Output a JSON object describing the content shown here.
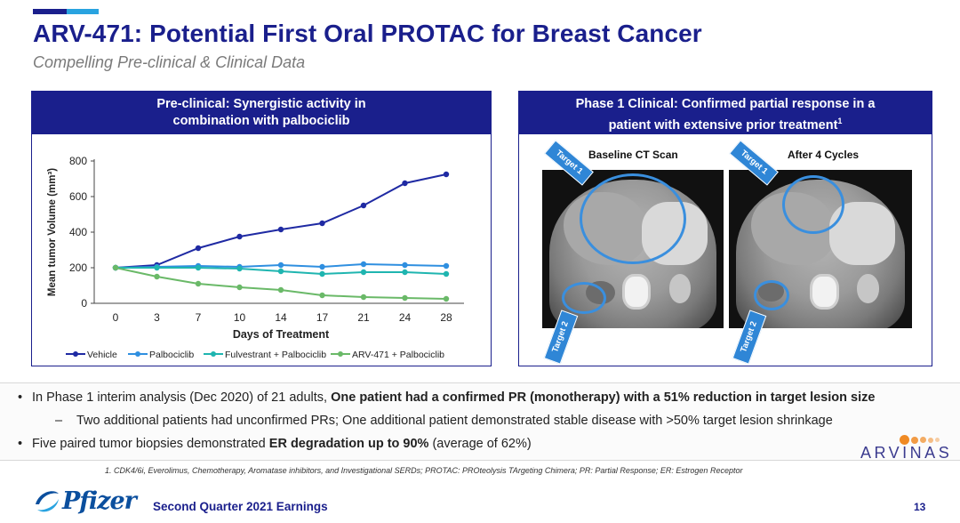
{
  "slide": {
    "title": "ARV-471: Potential First Oral PROTAC for Breast Cancer",
    "subtitle": "Compelling Pre-clinical & Clinical Data",
    "footer": "Second Quarter 2021 Earnings",
    "page_number": "13",
    "footnote": "1. CDK4/6i, Everolimus, Chemotherapy, Aromatase inhibitors, and Investigational SERDs; PROTAC: PROteolysis TArgeting Chimera; PR: Partial Response; ER: Estrogen Receptor"
  },
  "left_panel": {
    "header_line1": "Pre-clinical: Synergistic activity in",
    "header_line2": "combination with palbociclib"
  },
  "right_panel": {
    "header_line1": "Phase 1 Clinical: Confirmed partial response in a",
    "header_line2": "patient with extensive prior treatment",
    "header_sup": "1",
    "baseline_label": "Baseline CT Scan",
    "after_label": "After 4 Cycles",
    "target1_label": "Target 1",
    "target2_label": "Target 2"
  },
  "bullets": {
    "b1_plain": "In Phase 1 interim analysis (Dec 2020) of 21 adults, ",
    "b1_bold": "One patient had a confirmed PR (monotherapy) with a 51% reduction in target lesion size",
    "sub_dash": "–",
    "sub_text": "Two additional patients had unconfirmed PRs; One additional patient demonstrated stable disease with >50% target lesion shrinkage",
    "b2_plain": "Five paired tumor biopsies demonstrated ",
    "b2_bold": "ER degradation up to 90%",
    "b2_tail": " (average of 62%)",
    "bullet_char": "•"
  },
  "logos": {
    "pfizer": "Pfizer",
    "arvinas": "ARVINAS"
  },
  "colors": {
    "navy": "#1a1f8c",
    "accent_blue": "#29a3e0",
    "vehicle": "#1f2aa3",
    "palbociclib": "#2f8fe0",
    "fulvestrant": "#1fb5b0",
    "arv471": "#6ab968"
  },
  "chart_data": {
    "type": "line",
    "xlabel": "Days of Treatment",
    "ylabel": "Mean tumor Volume (mm³)",
    "x": [
      0,
      3,
      7,
      10,
      14,
      17,
      21,
      24,
      28
    ],
    "ylim": [
      0,
      800
    ],
    "yticks": [
      0,
      200,
      400,
      600,
      800
    ],
    "legend_position": "bottom",
    "grid": false,
    "series": [
      {
        "name": "Vehicle",
        "color": "#1f2aa3",
        "values": [
          200,
          215,
          310,
          375,
          415,
          450,
          550,
          675,
          725
        ]
      },
      {
        "name": "Palbociclib",
        "color": "#2f8fe0",
        "values": [
          200,
          205,
          210,
          205,
          215,
          205,
          220,
          215,
          210
        ]
      },
      {
        "name": "Fulvestrant + Palbociclib",
        "color": "#1fb5b0",
        "values": [
          200,
          200,
          200,
          195,
          180,
          165,
          175,
          175,
          165
        ]
      },
      {
        "name": "ARV-471 + Palbociclib",
        "color": "#6ab968",
        "values": [
          200,
          150,
          110,
          90,
          75,
          45,
          35,
          30,
          25
        ]
      }
    ]
  }
}
